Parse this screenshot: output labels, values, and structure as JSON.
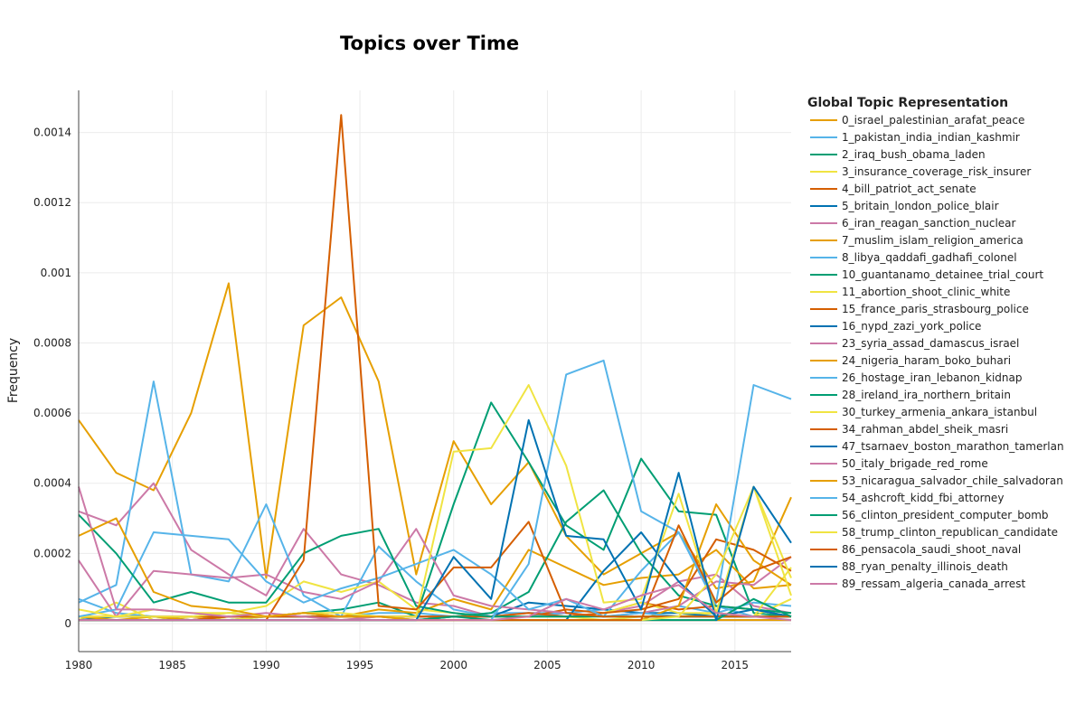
{
  "chart_data": {
    "type": "line",
    "title": "Topics over Time",
    "xlabel": "",
    "ylabel": "Frequency",
    "legend_title": "Global Topic Representation",
    "legend_position": "right",
    "grid": true,
    "xlim": [
      1980,
      2018
    ],
    "ylim": [
      -8e-05,
      0.00152
    ],
    "x_ticks": [
      1980,
      1985,
      1990,
      1995,
      2000,
      2005,
      2010,
      2015
    ],
    "x_tick_labels": [
      "1980",
      "1985",
      "1990",
      "1995",
      "2000",
      "2005",
      "2010",
      "2015"
    ],
    "y_ticks": [
      0,
      0.0002,
      0.0004,
      0.0006,
      0.0008,
      0.001,
      0.0012,
      0.0014
    ],
    "y_tick_labels": [
      "0",
      "0.0002",
      "0.0004",
      "0.0006",
      "0.0008",
      "0.001",
      "0.0012",
      "0.0014"
    ],
    "x": [
      1980,
      1982,
      1984,
      1986,
      1988,
      1990,
      1992,
      1994,
      1996,
      1998,
      2000,
      2002,
      2004,
      2006,
      2008,
      2010,
      2012,
      2014,
      2016,
      2018
    ],
    "series": [
      {
        "name": "0_israel_palestinian_arafat_peace",
        "color": "#E69F00",
        "values": [
          0.00058,
          0.00043,
          0.00038,
          0.0006,
          0.00097,
          0.00013,
          0.00085,
          0.00093,
          0.00069,
          0.00014,
          0.00052,
          0.00034,
          0.00046,
          0.00025,
          0.00014,
          0.0002,
          0.00026,
          0.0001,
          0.00012,
          0.00036
        ]
      },
      {
        "name": "1_pakistan_india_indian_kashmir",
        "color": "#56B4E9",
        "values": [
          7e-05,
          3e-05,
          2e-05,
          2e-05,
          3e-05,
          2e-05,
          3e-05,
          2e-05,
          3e-05,
          3e-05,
          2e-05,
          3e-05,
          3e-05,
          3e-05,
          4e-05,
          3e-05,
          5e-05,
          3e-05,
          6e-05,
          5e-05
        ]
      },
      {
        "name": "2_iraq_bush_obama_laden",
        "color": "#009E73",
        "values": [
          1e-05,
          1e-05,
          1e-05,
          1e-05,
          1e-05,
          2e-05,
          3e-05,
          4e-05,
          6e-05,
          2e-05,
          0.00034,
          0.00063,
          0.00046,
          0.00028,
          0.00021,
          0.00047,
          0.00032,
          0.00031,
          3e-05,
          2e-05
        ]
      },
      {
        "name": "3_insurance_coverage_risk_insurer",
        "color": "#F0E442",
        "values": [
          1e-05,
          6e-05,
          1e-05,
          2e-05,
          1e-05,
          2e-05,
          2e-05,
          1e-05,
          2e-05,
          1e-05,
          2e-05,
          2e-05,
          2e-05,
          2e-05,
          1e-05,
          2e-05,
          2e-05,
          3e-05,
          2e-05,
          7e-05
        ]
      },
      {
        "name": "4_bill_patriot_act_senate",
        "color": "#D55E00",
        "values": [
          2e-05,
          2e-05,
          2e-05,
          2e-05,
          2e-05,
          2e-05,
          2e-05,
          2e-05,
          2e-05,
          2e-05,
          2e-05,
          2e-05,
          2e-05,
          4e-05,
          3e-05,
          6e-05,
          4e-05,
          5e-05,
          4e-05,
          2e-05
        ]
      },
      {
        "name": "5_britain_london_police_blair",
        "color": "#0072B2",
        "values": [
          1e-05,
          2e-05,
          2e-05,
          1e-05,
          2e-05,
          2e-05,
          2e-05,
          2e-05,
          2e-05,
          2e-05,
          2e-05,
          2e-05,
          6e-05,
          5e-05,
          4e-05,
          3e-05,
          3e-05,
          2e-05,
          2e-05,
          2e-05
        ]
      },
      {
        "name": "6_iran_reagan_sanction_nuclear",
        "color": "#CC79A7",
        "values": [
          0.00032,
          0.00028,
          0.0004,
          0.00021,
          0.00014,
          8e-05,
          0.00027,
          0.00014,
          0.00011,
          6e-05,
          5e-05,
          2e-05,
          3e-05,
          2e-05,
          3e-05,
          5e-05,
          0.00012,
          0.00014,
          5e-05,
          3e-05
        ]
      },
      {
        "name": "7_muslim_islam_religion_america",
        "color": "#E69F00",
        "values": [
          2e-05,
          1e-05,
          2e-05,
          1e-05,
          2e-05,
          2e-05,
          3e-05,
          2e-05,
          4e-05,
          3e-05,
          7e-05,
          4e-05,
          0.00021,
          0.00016,
          0.00011,
          0.00013,
          0.00014,
          0.00021,
          0.0001,
          0.00011
        ]
      },
      {
        "name": "8_libya_qaddafi_gadhafi_colonel",
        "color": "#56B4E9",
        "values": [
          6e-05,
          0.00011,
          0.00069,
          0.00014,
          0.00012,
          0.00034,
          8e-05,
          2e-05,
          0.00022,
          0.00012,
          4e-05,
          2e-05,
          2e-05,
          3e-05,
          2e-05,
          0.00015,
          0.00026,
          5e-05,
          2e-05,
          2e-05
        ]
      },
      {
        "name": "10_guantanamo_detainee_trial_court",
        "color": "#009E73",
        "values": [
          1e-05,
          1e-05,
          1e-05,
          1e-05,
          1e-05,
          1e-05,
          1e-05,
          1e-05,
          1e-05,
          1e-05,
          2e-05,
          3e-05,
          9e-05,
          0.00029,
          0.00038,
          0.0002,
          8e-05,
          5e-05,
          4e-05,
          3e-05
        ]
      },
      {
        "name": "11_abortion_shoot_clinic_white",
        "color": "#F0E442",
        "values": [
          2e-05,
          2e-05,
          2e-05,
          2e-05,
          3e-05,
          5e-05,
          0.00012,
          9e-05,
          0.00012,
          4e-05,
          3e-05,
          2e-05,
          2e-05,
          2e-05,
          3e-05,
          6e-05,
          3e-05,
          3e-05,
          2e-05,
          0.00016
        ]
      },
      {
        "name": "15_france_paris_strasbourg_police",
        "color": "#D55E00",
        "values": [
          1e-05,
          1e-05,
          1e-05,
          1e-05,
          2e-05,
          2e-05,
          2e-05,
          2e-05,
          2e-05,
          2e-05,
          2e-05,
          2e-05,
          3e-05,
          2e-05,
          3e-05,
          4e-05,
          7e-05,
          0.00024,
          0.00021,
          0.00015
        ]
      },
      {
        "name": "16_nypd_zazi_york_police",
        "color": "#0072B2",
        "values": [
          1e-05,
          1e-05,
          1e-05,
          1e-05,
          1e-05,
          1e-05,
          1e-05,
          1e-05,
          1e-05,
          1e-05,
          1e-05,
          1e-05,
          1e-05,
          1e-05,
          0.00015,
          0.00026,
          0.00012,
          2e-05,
          4e-05,
          2e-05
        ]
      },
      {
        "name": "23_syria_assad_damascus_israel",
        "color": "#CC79A7",
        "values": [
          0.00018,
          2e-05,
          0.00015,
          0.00014,
          0.00013,
          0.00014,
          9e-05,
          7e-05,
          0.00012,
          0.00027,
          8e-05,
          5e-05,
          4e-05,
          3e-05,
          2e-05,
          3e-05,
          5e-05,
          0.00012,
          0.00011,
          0.00019
        ]
      },
      {
        "name": "24_nigeria_haram_boko_buhari",
        "color": "#E69F00",
        "values": [
          1e-05,
          1e-05,
          1e-05,
          1e-05,
          1e-05,
          1e-05,
          1e-05,
          1e-05,
          1e-05,
          1e-05,
          1e-05,
          1e-05,
          1e-05,
          1e-05,
          1e-05,
          1e-05,
          5e-05,
          0.00034,
          0.00018,
          0.00011
        ]
      },
      {
        "name": "26_hostage_iran_lebanon_kidnap",
        "color": "#56B4E9",
        "values": [
          2e-05,
          4e-05,
          0.00026,
          0.00025,
          0.00024,
          0.00012,
          6e-05,
          0.0001,
          0.00013,
          0.00017,
          0.00021,
          0.00014,
          4e-05,
          7e-05,
          2e-05,
          3e-05,
          2e-05,
          2e-05,
          2e-05,
          2e-05
        ]
      },
      {
        "name": "28_ireland_ira_northern_britain",
        "color": "#009E73",
        "values": [
          0.00031,
          0.0002,
          6e-05,
          9e-05,
          6e-05,
          6e-05,
          0.0002,
          0.00025,
          0.00027,
          5e-05,
          3e-05,
          2e-05,
          2e-05,
          2e-05,
          2e-05,
          2e-05,
          2e-05,
          2e-05,
          2e-05,
          2e-05
        ]
      },
      {
        "name": "30_turkey_armenia_ankara_istanbul",
        "color": "#F0E442",
        "values": [
          4e-05,
          2e-05,
          4e-05,
          3e-05,
          3e-05,
          2e-05,
          3e-05,
          3e-05,
          2e-05,
          2e-05,
          0.00049,
          0.0005,
          0.00068,
          0.00045,
          6e-05,
          7e-05,
          0.00037,
          3e-05,
          0.00039,
          0.00013
        ]
      },
      {
        "name": "34_rahman_abdel_sheik_masri",
        "color": "#D55E00",
        "values": [
          1e-05,
          1e-05,
          1e-05,
          1e-05,
          1e-05,
          1e-05,
          0.00018,
          0.00145,
          5e-05,
          4e-05,
          0.00016,
          0.00016,
          0.00029,
          3e-05,
          2e-05,
          2e-05,
          2e-05,
          2e-05,
          2e-05,
          2e-05
        ]
      },
      {
        "name": "47_tsarnaev_boston_marathon_tamerlan",
        "color": "#0072B2",
        "values": [
          1e-05,
          1e-05,
          1e-05,
          1e-05,
          1e-05,
          1e-05,
          1e-05,
          1e-05,
          1e-05,
          1e-05,
          1e-05,
          1e-05,
          1e-05,
          1e-05,
          1e-05,
          1e-05,
          1e-05,
          1e-05,
          1e-05,
          1e-05
        ]
      },
      {
        "name": "50_italy_brigade_red_rome",
        "color": "#CC79A7",
        "values": [
          0.00039,
          4e-05,
          4e-05,
          3e-05,
          2e-05,
          3e-05,
          2e-05,
          1e-05,
          2e-05,
          1e-05,
          1e-05,
          1e-05,
          1e-05,
          1e-05,
          1e-05,
          1e-05,
          1e-05,
          1e-05,
          1e-05,
          1e-05
        ]
      },
      {
        "name": "53_nicaragua_salvador_chile_salvadoran",
        "color": "#E69F00",
        "values": [
          0.00025,
          0.0003,
          9e-05,
          5e-05,
          4e-05,
          2e-05,
          3e-05,
          2e-05,
          2e-05,
          1e-05,
          1e-05,
          1e-05,
          1e-05,
          1e-05,
          1e-05,
          1e-05,
          1e-05,
          1e-05,
          1e-05,
          1e-05
        ]
      },
      {
        "name": "54_ashcroft_kidd_fbi_attorney",
        "color": "#56B4E9",
        "values": [
          1e-05,
          1e-05,
          1e-05,
          1e-05,
          1e-05,
          1e-05,
          1e-05,
          1e-05,
          1e-05,
          1e-05,
          1e-05,
          1e-05,
          0.00017,
          0.00071,
          0.00075,
          0.00032,
          0.00026,
          6e-05,
          0.00068,
          0.00064
        ]
      },
      {
        "name": "56_clinton_president_computer_bomb",
        "color": "#009E73",
        "values": [
          1e-05,
          1e-05,
          1e-05,
          1e-05,
          1e-05,
          1e-05,
          1e-05,
          1e-05,
          1e-05,
          1e-05,
          2e-05,
          1e-05,
          1e-05,
          1e-05,
          1e-05,
          1e-05,
          1e-05,
          1e-05,
          7e-05,
          2e-05
        ]
      },
      {
        "name": "58_trump_clinton_republican_candidate",
        "color": "#F0E442",
        "values": [
          1e-05,
          1e-05,
          1e-05,
          1e-05,
          1e-05,
          1e-05,
          1e-05,
          1e-05,
          1e-05,
          1e-05,
          1e-05,
          1e-05,
          1e-05,
          1e-05,
          1e-05,
          1e-05,
          2e-05,
          0.00014,
          0.00039,
          8e-05
        ]
      },
      {
        "name": "86_pensacola_saudi_shoot_naval",
        "color": "#D55E00",
        "values": [
          1e-05,
          1e-05,
          1e-05,
          1e-05,
          1e-05,
          1e-05,
          1e-05,
          1e-05,
          1e-05,
          1e-05,
          1e-05,
          1e-05,
          1e-05,
          1e-05,
          1e-05,
          1e-05,
          0.00028,
          6e-05,
          0.00015,
          0.00019
        ]
      },
      {
        "name": "88_ryan_penalty_illinois_death",
        "color": "#0072B2",
        "values": [
          1e-05,
          1e-05,
          1e-05,
          1e-05,
          1e-05,
          1e-05,
          1e-05,
          1e-05,
          1e-05,
          1e-05,
          0.00019,
          7e-05,
          0.00058,
          0.00025,
          0.00024,
          4e-05,
          0.00043,
          1e-05,
          0.00039,
          0.00023
        ]
      },
      {
        "name": "89_ressam_algeria_canada_arrest",
        "color": "#CC79A7",
        "values": [
          1e-05,
          1e-05,
          1e-05,
          1e-05,
          1e-05,
          1e-05,
          1e-05,
          1e-05,
          1e-05,
          1e-05,
          1e-05,
          1e-05,
          2e-05,
          7e-05,
          4e-05,
          8e-05,
          0.00011,
          3e-05,
          2e-05,
          1e-05
        ]
      }
    ]
  }
}
